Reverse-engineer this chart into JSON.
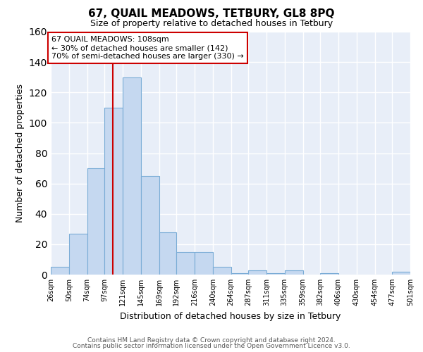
{
  "title": "67, QUAIL MEADOWS, TETBURY, GL8 8PQ",
  "subtitle": "Size of property relative to detached houses in Tetbury",
  "xlabel": "Distribution of detached houses by size in Tetbury",
  "ylabel": "Number of detached properties",
  "bar_values": [
    5,
    27,
    70,
    110,
    130,
    65,
    28,
    15,
    15,
    5,
    1,
    3,
    1,
    3,
    0,
    1,
    0,
    0,
    0,
    2
  ],
  "bin_labels": [
    "26sqm",
    "50sqm",
    "74sqm",
    "97sqm",
    "121sqm",
    "145sqm",
    "169sqm",
    "192sqm",
    "216sqm",
    "240sqm",
    "264sqm",
    "287sqm",
    "311sqm",
    "335sqm",
    "359sqm",
    "382sqm",
    "406sqm",
    "430sqm",
    "454sqm",
    "477sqm",
    "501sqm"
  ],
  "bin_edges": [
    26,
    50,
    74,
    97,
    121,
    145,
    169,
    192,
    216,
    240,
    264,
    287,
    311,
    335,
    359,
    382,
    406,
    430,
    454,
    477,
    501
  ],
  "property_value": 108,
  "vline_color": "#cc0000",
  "annotation_line1": "67 QUAIL MEADOWS: 108sqm",
  "annotation_line2": "← 30% of detached houses are smaller (142)",
  "annotation_line3": "70% of semi-detached houses are larger (330) →",
  "annotation_box_facecolor": "#ffffff",
  "annotation_box_edgecolor": "#cc0000",
  "bar_facecolor": "#c5d8f0",
  "bar_edgecolor": "#7aacd6",
  "plot_bg_color": "#e8eef8",
  "fig_bg_color": "#ffffff",
  "grid_color": "#ffffff",
  "ylim": [
    0,
    160
  ],
  "yticks": [
    0,
    20,
    40,
    60,
    80,
    100,
    120,
    140,
    160
  ],
  "footer1": "Contains HM Land Registry data © Crown copyright and database right 2024.",
  "footer2": "Contains public sector information licensed under the Open Government Licence v3.0."
}
